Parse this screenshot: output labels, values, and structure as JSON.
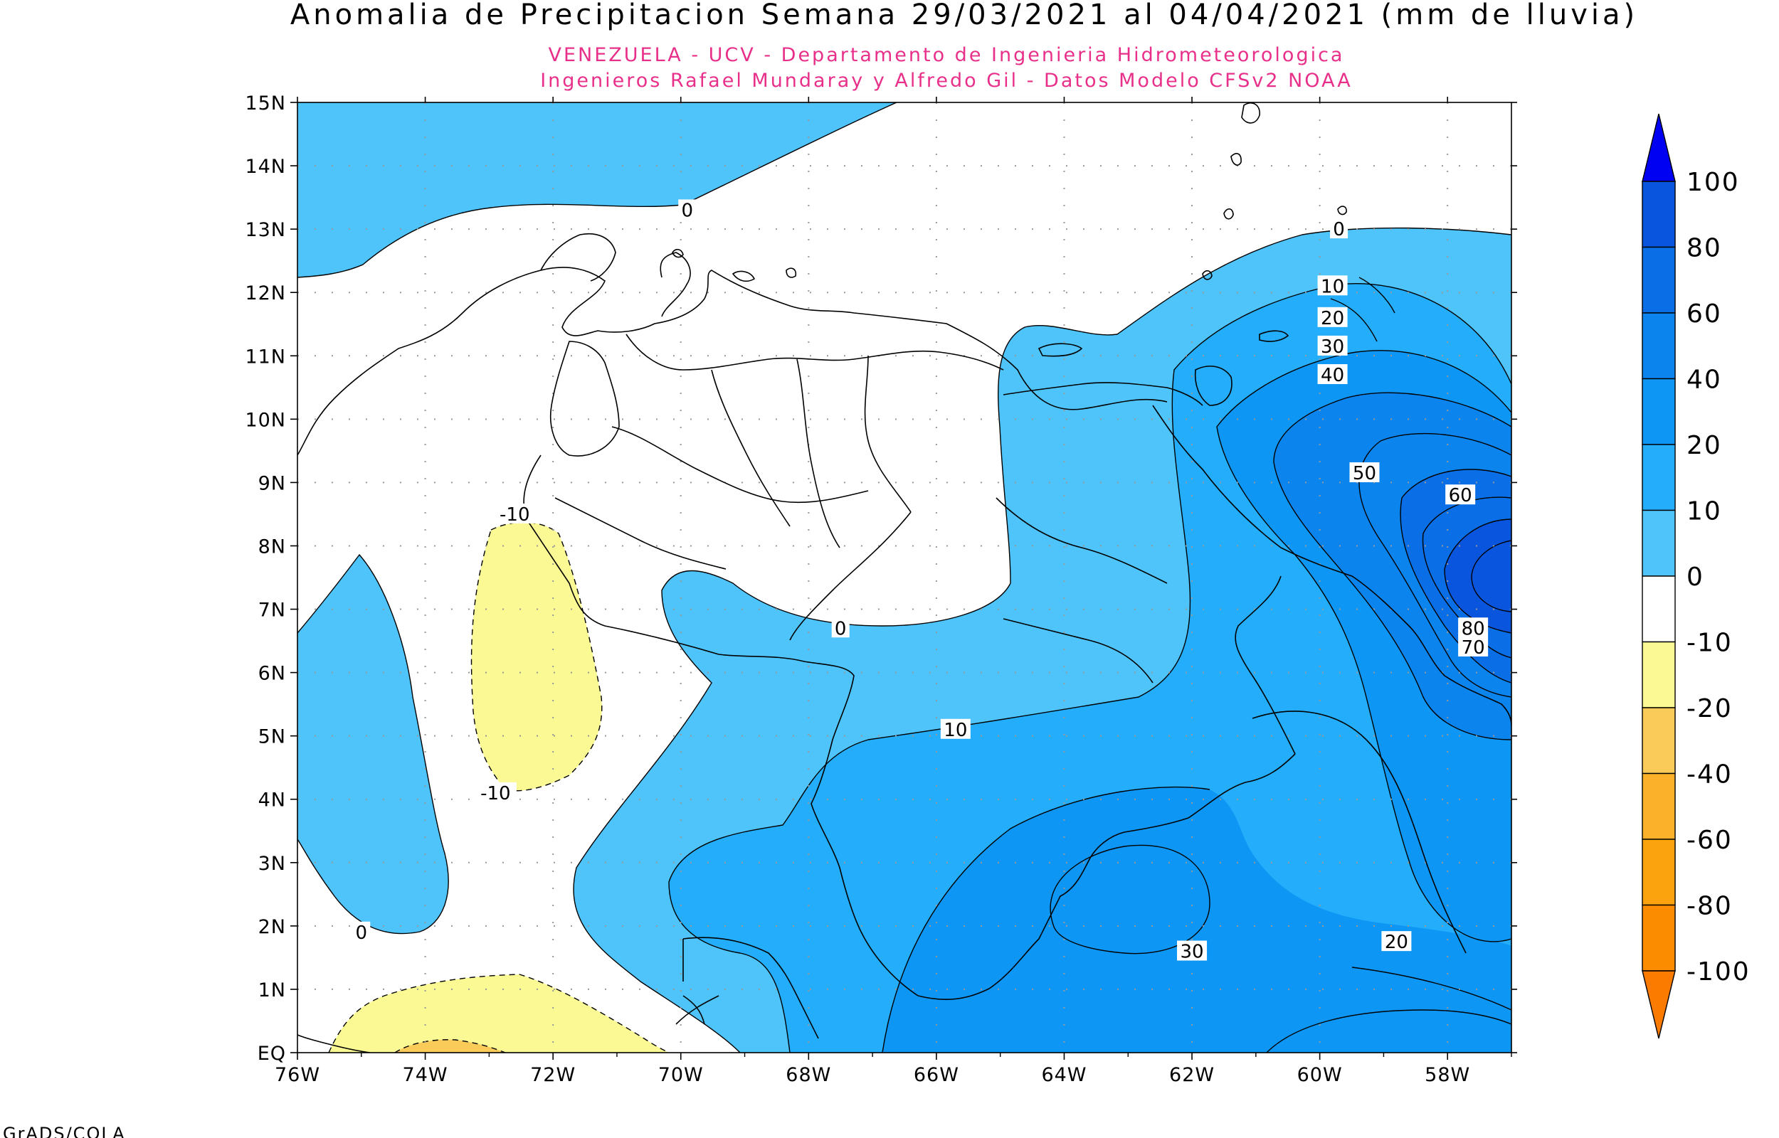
{
  "title": "Anomalia de Precipitacion Semana 29/03/2021 al 04/04/2021 (mm de lluvia)",
  "subtitle_line1": "VENEZUELA - UCV - Departamento de Ingenieria Hidrometeorologica",
  "subtitle_line2": "Ingenieros Rafael Mundaray y Alfredo Gil - Datos Modelo CFSv2 NOAA",
  "credit": "GrADS/COLA",
  "colors": {
    "subtitle": "#e8308a",
    "c0_10": "#4fc4fb",
    "c10_20": "#23adfa",
    "c20_40": "#0e96f4",
    "c40_60": "#0b84ee",
    "c60_80": "#0a6fe6",
    "c80_100": "#0a55dd",
    "c100": "#0000f2",
    "neg10_0": "#ffffff",
    "neg20_10": "#fbf994",
    "neg40_20": "#fbcb5a",
    "neg60_40": "#fbb22a",
    "neg80_60": "#fba30f",
    "neg100_80": "#fb8c00",
    "neg100": "#fb7a00"
  },
  "map": {
    "lon_range": [
      -76,
      -57
    ],
    "lat_range": [
      0,
      15
    ],
    "lon_ticks": [
      "76W",
      "74W",
      "72W",
      "70W",
      "68W",
      "66W",
      "64W",
      "62W",
      "60W",
      "58W"
    ],
    "lat_ticks": [
      "EQ",
      "1N",
      "2N",
      "3N",
      "4N",
      "5N",
      "6N",
      "7N",
      "8N",
      "9N",
      "10N",
      "11N",
      "12N",
      "13N",
      "14N",
      "15N"
    ],
    "contour_labels": [
      {
        "text": "0",
        "lon": -69.9,
        "lat": 13.3
      },
      {
        "text": "0",
        "lon": -59.7,
        "lat": 13.0
      },
      {
        "text": "10",
        "lon": -59.8,
        "lat": 12.1
      },
      {
        "text": "20",
        "lon": -59.8,
        "lat": 11.6
      },
      {
        "text": "30",
        "lon": -59.8,
        "lat": 11.15
      },
      {
        "text": "40",
        "lon": -59.8,
        "lat": 10.7
      },
      {
        "text": "50",
        "lon": -59.3,
        "lat": 9.15
      },
      {
        "text": "60",
        "lon": -57.8,
        "lat": 8.8
      },
      {
        "text": "80",
        "lon": -57.6,
        "lat": 6.7
      },
      {
        "text": "70",
        "lon": -57.6,
        "lat": 6.4
      },
      {
        "text": "0",
        "lon": -67.5,
        "lat": 6.7
      },
      {
        "text": "10",
        "lon": -65.7,
        "lat": 5.1
      },
      {
        "text": "30",
        "lon": -62.0,
        "lat": 1.6
      },
      {
        "text": "20",
        "lon": -58.8,
        "lat": 1.75
      },
      {
        "text": "-10",
        "lon": -72.6,
        "lat": 8.5
      },
      {
        "text": "-10",
        "lon": -72.9,
        "lat": 4.1
      },
      {
        "text": "0",
        "lon": -75.0,
        "lat": 1.9
      }
    ]
  },
  "colorbar": {
    "labels": [
      "100",
      "80",
      "60",
      "40",
      "20",
      "10",
      "0",
      "-10",
      "-20",
      "-40",
      "-60",
      "-80",
      "-100"
    ]
  }
}
